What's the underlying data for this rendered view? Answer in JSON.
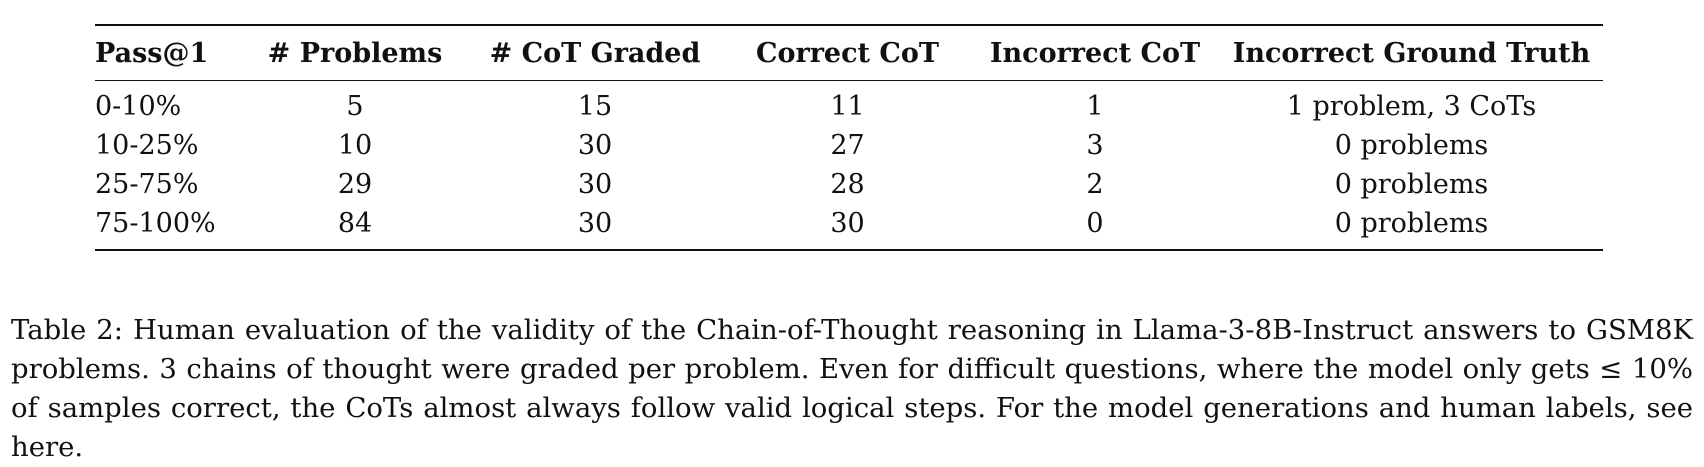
{
  "table": {
    "headers": [
      "Pass@1",
      "# Problems",
      "# CoT Graded",
      "Correct CoT",
      "Incorrect CoT",
      "Incorrect Ground Truth"
    ],
    "rows": [
      [
        "0-10%",
        "5",
        "15",
        "11",
        "1",
        "1 problem, 3 CoTs"
      ],
      [
        "10-25%",
        "10",
        "30",
        "27",
        "3",
        "0 problems"
      ],
      [
        "25-75%",
        "29",
        "30",
        "28",
        "2",
        "0 problems"
      ],
      [
        "75-100%",
        "84",
        "30",
        "30",
        "0",
        "0 problems"
      ]
    ]
  },
  "caption": {
    "text": "Table 2: Human evaluation of the validity of the Chain-of-Thought reasoning in Llama-3-8B-Instruct answers to GSM8K problems. 3 chains of thought were graded per problem. Even for difficult questions, where the model only gets ≤ 10% of samples correct, the CoTs almost always follow valid logical steps. For the model generations and human labels, see here."
  }
}
